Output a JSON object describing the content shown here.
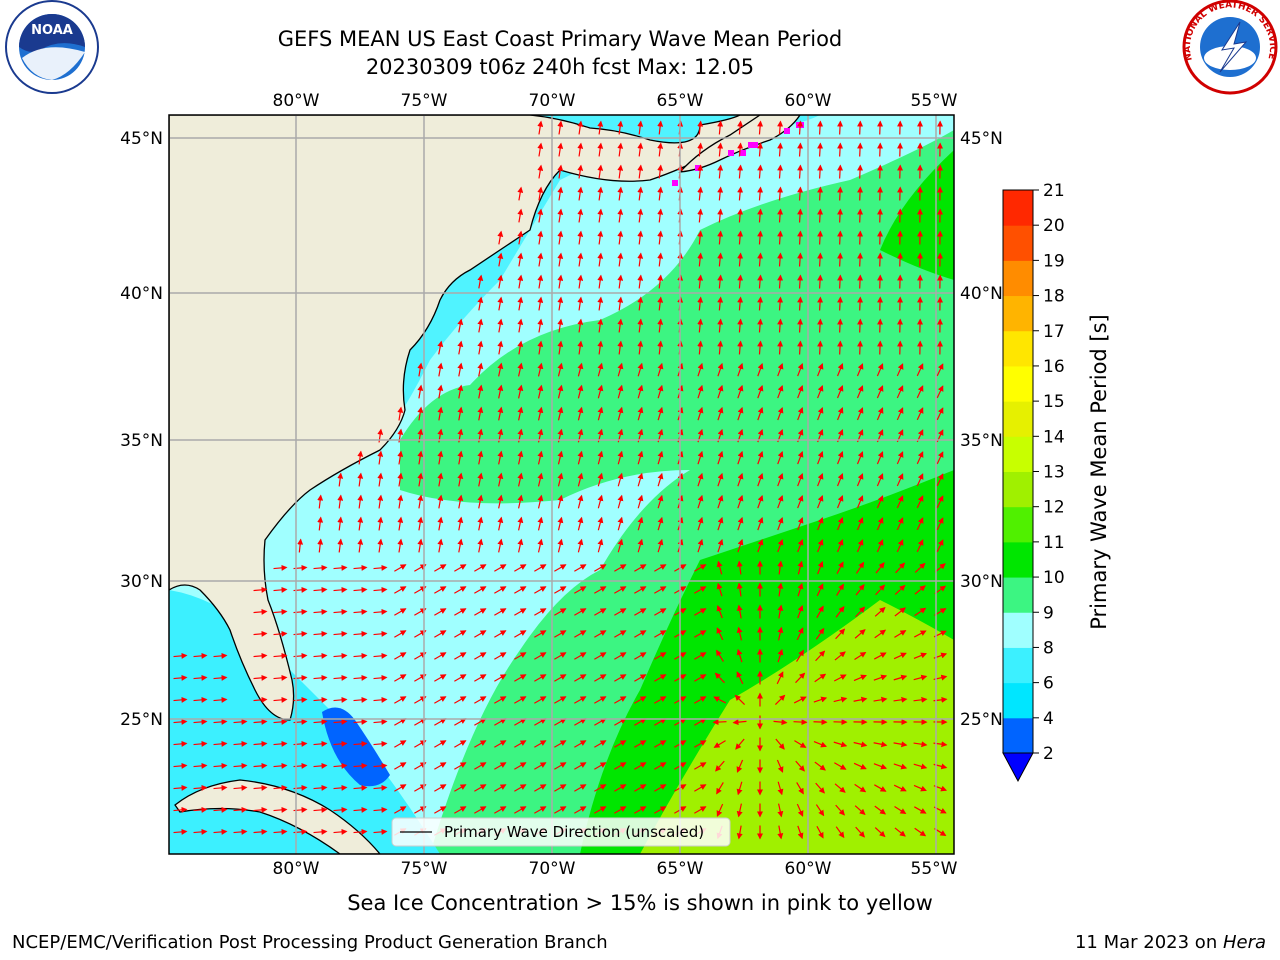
{
  "header": {
    "title_line1": "GEFS MEAN US East Coast Primary Wave Mean Period",
    "title_line2": "20230309 t06z 240h fcst   Max: 12.05"
  },
  "map": {
    "lon_labels": [
      "80°W",
      "75°W",
      "70°W",
      "65°W",
      "60°W",
      "55°W"
    ],
    "lat_labels": [
      "45°N",
      "40°N",
      "35°N",
      "30°N",
      "25°N"
    ],
    "legend_label": "Primary Wave Direction (unscaled)"
  },
  "colorbar": {
    "label": "Primary Wave Mean Period [s]",
    "ticks": [
      "2",
      "4",
      "6",
      "8",
      "9",
      "10",
      "11",
      "12",
      "13",
      "14",
      "15",
      "16",
      "17",
      "18",
      "19",
      "20",
      "21"
    ],
    "colors": [
      "#0064ff",
      "#00e6ff",
      "#3cf0ff",
      "#a0ffff",
      "#3cf582",
      "#00e600",
      "#50f000",
      "#a0f000",
      "#c8ff00",
      "#e6f000",
      "#ffff00",
      "#ffe600",
      "#ffb400",
      "#ff8c00",
      "#ff5000",
      "#ff2800",
      "#ff0000"
    ],
    "under_color": "#0000ff"
  },
  "logos": {
    "noaa_text": "NOAA",
    "nws_text": "NATIONAL WEATHER SERVICE"
  },
  "footer": {
    "note": "Sea Ice Concentration > 15% is shown in pink to yellow",
    "credit": "NCEP/EMC/Verification Post Processing Product Generation Branch",
    "date": "11 Mar 2023 on ",
    "machine": "Hera"
  }
}
